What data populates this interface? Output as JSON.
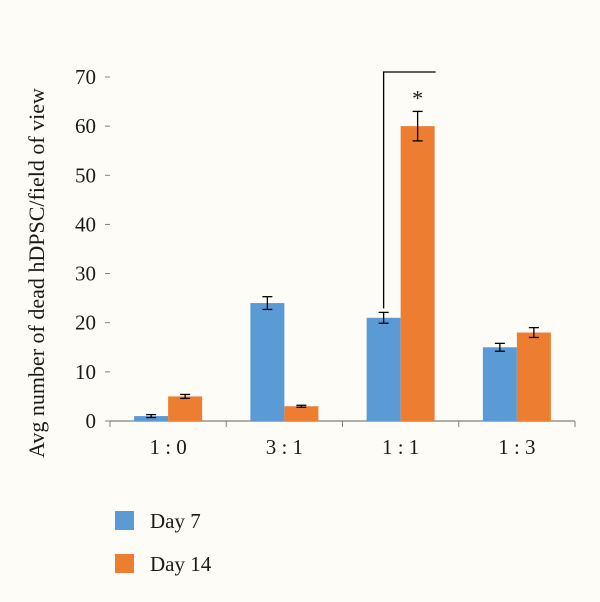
{
  "chart_data": {
    "type": "bar",
    "title": "",
    "xlabel": "",
    "ylabel": "Avg number of dead hDPSC/field of view",
    "ylim": [
      0,
      70
    ],
    "yticks": [
      0,
      10,
      20,
      30,
      40,
      50,
      60,
      70
    ],
    "categories": [
      "1 : 0",
      "3 : 1",
      "1 : 1",
      "1 : 3"
    ],
    "series": [
      {
        "name": "Day 7",
        "color": "#5b9bd5",
        "values": [
          1,
          24,
          21,
          15
        ],
        "errors": [
          0.3,
          1.3,
          1.1,
          0.8
        ]
      },
      {
        "name": "Day 14",
        "color": "#ed7d31",
        "values": [
          5,
          3,
          60,
          18
        ],
        "errors": [
          0.4,
          0.2,
          3.0,
          1.0
        ]
      }
    ],
    "annotations": [
      {
        "text": "*",
        "category": "1 : 1",
        "series": "Day 14"
      }
    ],
    "legend": "bottom-left",
    "grid": false
  }
}
